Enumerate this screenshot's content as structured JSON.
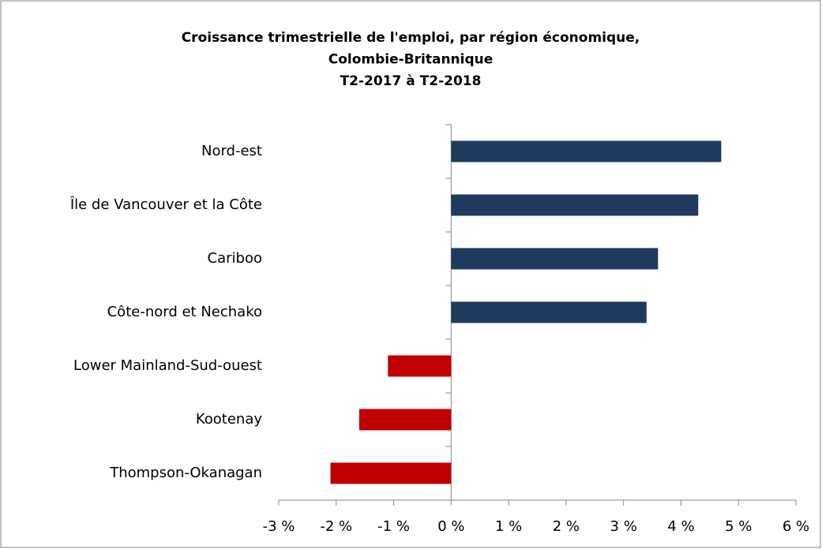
{
  "chart_data": {
    "type": "barh",
    "title": [
      "Croissance trimestrielle de l'emploi, par région économique,",
      "Colombie-Britannique",
      "T2-2017 à T2-2018"
    ],
    "categories": [
      "Nord-est",
      "Île de Vancouver et la Côte",
      "Cariboo",
      "Côte-nord et Nechako",
      "Lower Mainland-Sud-ouest",
      "Kootenay",
      "Thompson-Okanagan"
    ],
    "values": [
      4.7,
      4.3,
      3.6,
      3.4,
      -1.1,
      -1.6,
      -2.1
    ],
    "colors": [
      "#1f3a5f",
      "#1f3a5f",
      "#1f3a5f",
      "#1f3a5f",
      "#c00000",
      "#c00000",
      "#c00000"
    ],
    "xlim": [
      -3,
      6
    ],
    "xticks": [
      {
        "value": -3,
        "label": "-3 %"
      },
      {
        "value": -2,
        "label": "-2 %"
      },
      {
        "value": -1,
        "label": "-1 %"
      },
      {
        "value": 0,
        "label": "0 %"
      },
      {
        "value": 1,
        "label": "1 %"
      },
      {
        "value": 2,
        "label": "2 %"
      },
      {
        "value": 3,
        "label": "3 %"
      },
      {
        "value": 4,
        "label": "4 %"
      },
      {
        "value": 5,
        "label": "5 %"
      },
      {
        "value": 6,
        "label": "6 %"
      }
    ],
    "grid": false
  }
}
